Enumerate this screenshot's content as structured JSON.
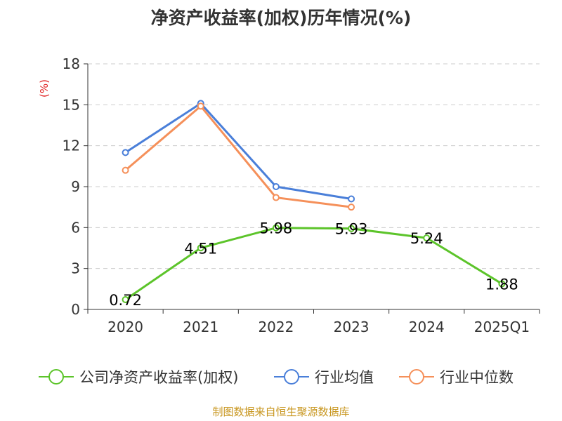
{
  "chart_data": {
    "type": "line",
    "title": "净资产收益率(加权)历年情况(%)",
    "ylabel": "(%)",
    "categories": [
      "2020",
      "2021",
      "2022",
      "2023",
      "2024",
      "2025Q1"
    ],
    "ylim": [
      0,
      18
    ],
    "yticks": [
      "0",
      "3",
      "6",
      "9",
      "12",
      "15",
      "18"
    ],
    "grid": true,
    "legend_position": "bottom",
    "series": [
      {
        "name": "公司净资产收益率(加权)",
        "color": "#5cc42a",
        "values": [
          0.72,
          4.51,
          5.98,
          5.93,
          5.24,
          1.88
        ],
        "labels": [
          "0.72",
          "4.51",
          "5.98",
          "5.93",
          "5.24",
          "1.88"
        ]
      },
      {
        "name": "行业均值",
        "color": "#4a7fd9",
        "values": [
          11.5,
          15.1,
          9.0,
          8.1,
          null,
          null
        ]
      },
      {
        "name": "行业中位数",
        "color": "#f5905a",
        "values": [
          10.2,
          14.9,
          8.2,
          7.5,
          null,
          null
        ]
      }
    ]
  },
  "source_text": "制图数据来自恒生聚源数据库"
}
